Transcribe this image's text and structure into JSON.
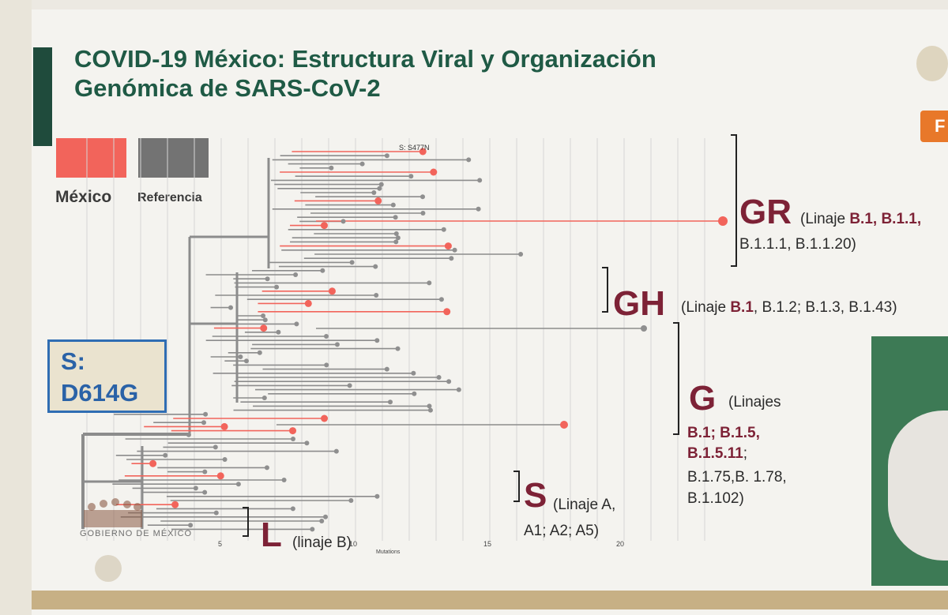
{
  "title_line1": "COVID-19 México: Estructura Viral y Organización",
  "title_line2": "Genómica de SARS-CoV-2",
  "legend": {
    "mexico": {
      "label": "México",
      "color": "#f2645b"
    },
    "reference": {
      "label": "Referencia",
      "color": "#737373"
    }
  },
  "mutation_box": {
    "line1": "S:",
    "line2": "D614G"
  },
  "tree_annotation": "S: S477N",
  "axis": {
    "label": "Mutations",
    "ticks": [
      "5",
      "10",
      "15",
      "20"
    ]
  },
  "clades": {
    "GR": {
      "letter": "GR",
      "prefix": "(Linaje ",
      "bold": "B.1, B.1.1,",
      "line2": "B.1.1.1, B.1.1.20)"
    },
    "GH": {
      "letter": "GH",
      "prefix": "(Linaje ",
      "bold": "B.1",
      "rest": ", B.1.2; B.1.3, B.1.43)"
    },
    "G": {
      "letter": "G",
      "line1": "(Linajes",
      "bold1": "B.1; B.1.5,",
      "bold2": "B.1.5.11",
      "semi": ";",
      "line4": "B.1.75,B. 1.78,",
      "line5": "B.1.102)"
    },
    "S": {
      "letter": "S",
      "line1": "(Linaje A,",
      "line2": "A1; A2; A5)"
    },
    "L": {
      "letter": "L",
      "text": "(linaje B)"
    }
  },
  "side_tab": "F",
  "logo_text": "GOBIERNO DE MÉXICO"
}
